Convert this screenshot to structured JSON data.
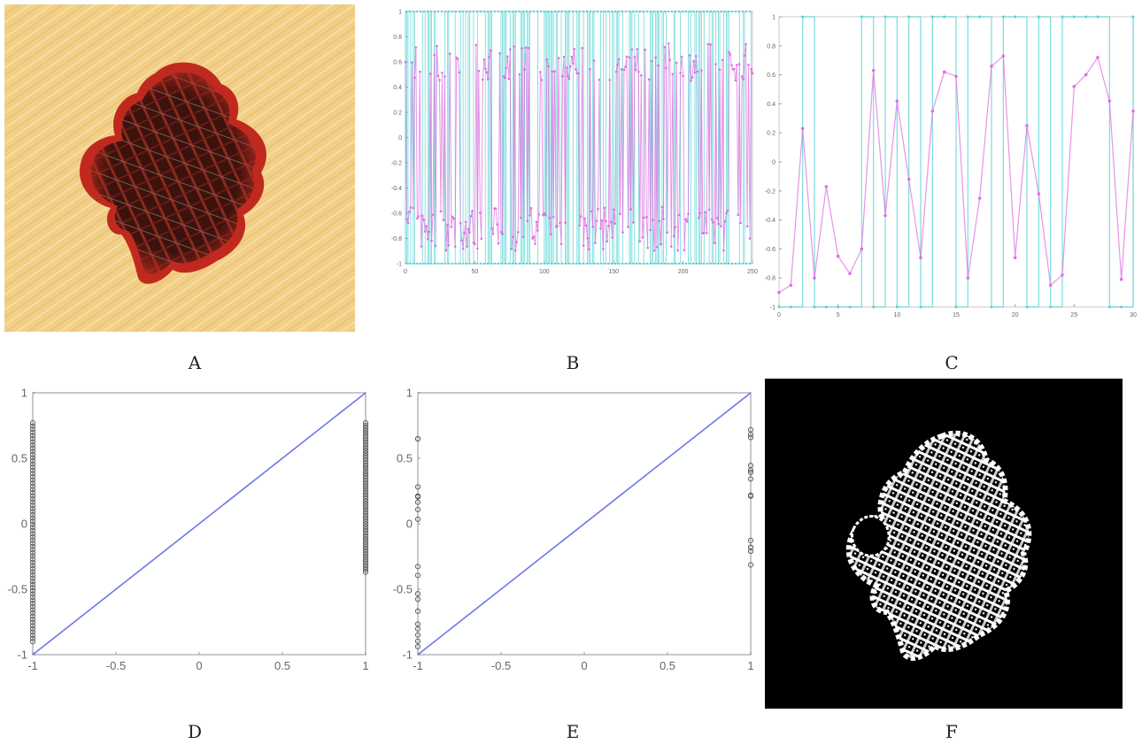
{
  "panels": {
    "A": {
      "label": "A",
      "image": "dermoscopic-lesion-photo"
    },
    "B": {
      "label": "B"
    },
    "C": {
      "label": "C"
    },
    "D": {
      "label": "D"
    },
    "E": {
      "label": "E"
    },
    "F": {
      "label": "F",
      "image": "binary-lesion-mask"
    }
  },
  "colors": {
    "series_fit": "#e06fe0",
    "series_target": "#56d4d4",
    "diag_line": "#6b78e8",
    "markers": "#555555",
    "skin": "#f2cf86",
    "lesion": "#a5221c"
  },
  "chart_data": [
    {
      "panel": "B",
      "type": "line",
      "xlim": [
        0,
        265
      ],
      "ylim": [
        -1,
        1
      ],
      "xticks": [
        "0",
        "50",
        "100",
        "150",
        "200",
        "250"
      ],
      "yticks": [
        "1",
        "0.8",
        "0.6",
        "0.4",
        "0.2",
        "0",
        "-0.2",
        "-0.4",
        "-0.6",
        "-0.8",
        "-1"
      ],
      "series": [
        {
          "role": "target",
          "levels": [
            -1,
            1
          ]
        },
        {
          "role": "output",
          "range": [
            -0.9,
            0.75
          ]
        }
      ]
    },
    {
      "panel": "C",
      "type": "line",
      "xlim": [
        0,
        30
      ],
      "ylim": [
        -1,
        1
      ],
      "xticks": [
        "0",
        "5",
        "10",
        "15",
        "20",
        "25",
        "30"
      ],
      "yticks": [
        "1",
        "0.8",
        "0.6",
        "0.4",
        "0.2",
        "0",
        "-0.2",
        "-0.4",
        "-0.6",
        "-0.8",
        "-1"
      ],
      "series": [
        {
          "role": "target",
          "x": [
            0,
            1,
            2,
            3,
            4,
            5,
            6,
            7,
            8,
            9,
            10,
            11,
            12,
            13,
            14,
            15,
            16,
            17,
            18,
            19,
            20,
            21,
            22,
            23,
            24,
            25,
            26,
            27,
            28,
            29,
            30
          ],
          "values": [
            -1,
            -1,
            1,
            -1,
            -1,
            -1,
            -1,
            1,
            -1,
            1,
            -1,
            1,
            -1,
            1,
            1,
            -1,
            1,
            1,
            -1,
            1,
            1,
            -1,
            1,
            -1,
            1,
            1,
            1,
            1,
            -1,
            -1,
            1
          ]
        },
        {
          "role": "output",
          "x": [
            0,
            1,
            2,
            3,
            4,
            5,
            6,
            7,
            8,
            9,
            10,
            11,
            12,
            13,
            14,
            15,
            16,
            17,
            18,
            19,
            20,
            21,
            22,
            23,
            24,
            25,
            26,
            27,
            28,
            29,
            30
          ],
          "values": [
            -0.9,
            -0.85,
            0.23,
            -0.8,
            -0.17,
            -0.65,
            -0.77,
            -0.6,
            0.63,
            -0.37,
            0.42,
            -0.12,
            -0.66,
            0.35,
            0.62,
            0.59,
            -0.8,
            -0.25,
            0.66,
            0.73,
            -0.66,
            0.25,
            -0.22,
            -0.85,
            -0.78,
            0.52,
            0.6,
            0.72,
            0.42,
            -0.81,
            0.35
          ]
        }
      ]
    },
    {
      "panel": "D",
      "type": "scatter",
      "xlim": [
        -1,
        1
      ],
      "ylim": [
        -1,
        1
      ],
      "xticks": [
        "-1",
        "-0.5",
        "0",
        "0.5",
        "1"
      ],
      "yticks": [
        "1",
        "0.5",
        "0",
        "-0.5",
        "-1"
      ],
      "series": [
        {
          "role": "fit",
          "x": [
            -1,
            1
          ],
          "values": [
            -1,
            1
          ]
        },
        {
          "role": "points",
          "x_at": [
            -1,
            1
          ],
          "ranges": [
            [
              -0.9,
              0.77
            ],
            [
              -0.37,
              0.77
            ]
          ]
        }
      ]
    },
    {
      "panel": "E",
      "type": "scatter",
      "xlim": [
        -1,
        1
      ],
      "ylim": [
        -1,
        1
      ],
      "xticks": [
        "-1",
        "-0.5",
        "0",
        "0.5",
        "1"
      ],
      "yticks": [
        "1",
        "0.5",
        "0",
        "-0.5",
        "-1"
      ],
      "series": [
        {
          "role": "fit",
          "x": [
            -1,
            1
          ],
          "values": [
            -1,
            1
          ]
        },
        {
          "role": "points",
          "x_at": [
            -1,
            1
          ],
          "ranges": [
            [
              -0.95,
              0.75
            ],
            [
              -0.35,
              0.75
            ]
          ]
        }
      ]
    }
  ]
}
